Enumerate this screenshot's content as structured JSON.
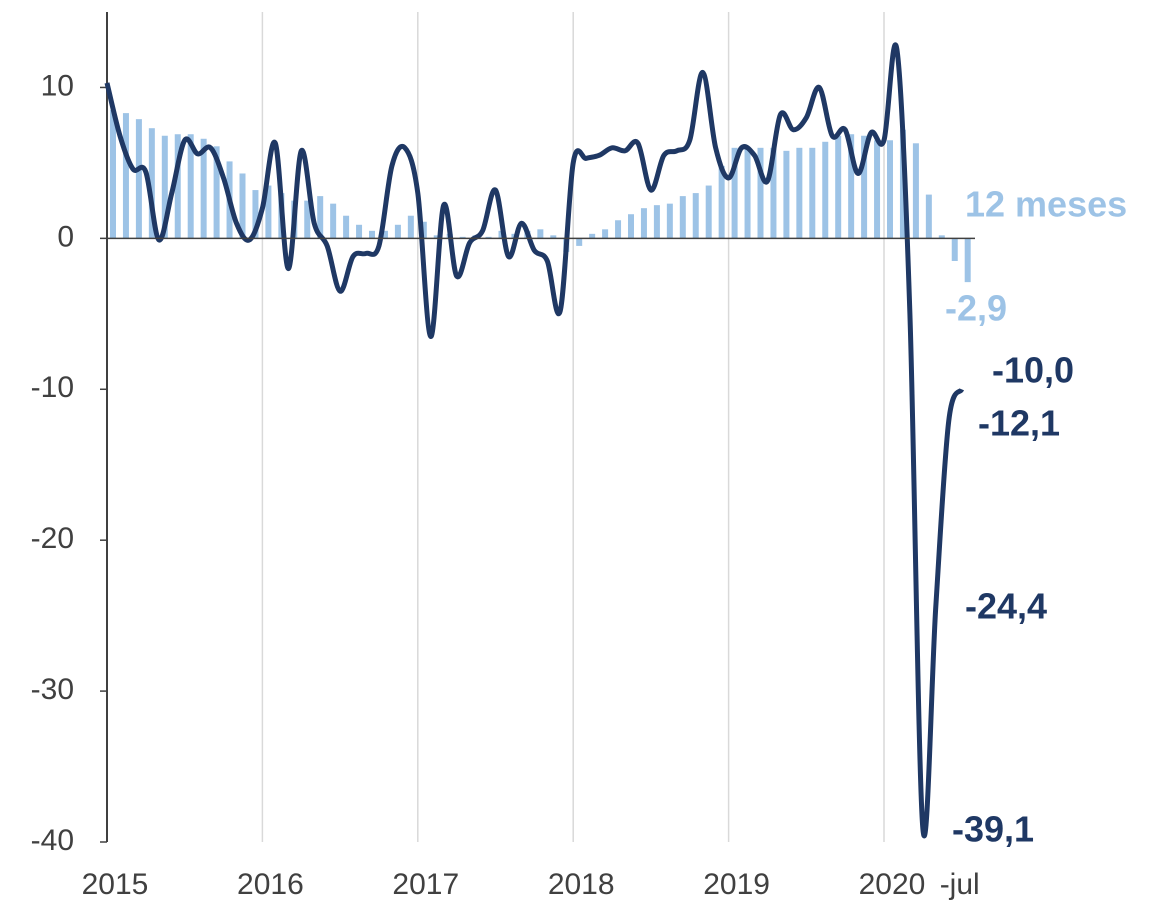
{
  "chart_data": {
    "type": "bar-line",
    "categories": [
      "2015",
      null,
      null,
      null,
      null,
      null,
      null,
      null,
      null,
      null,
      null,
      null,
      "2016",
      null,
      null,
      null,
      null,
      null,
      null,
      null,
      null,
      null,
      null,
      null,
      "2017",
      null,
      null,
      null,
      null,
      null,
      null,
      null,
      null,
      null,
      null,
      null,
      "2018",
      null,
      null,
      null,
      null,
      null,
      null,
      null,
      null,
      null,
      null,
      null,
      "2019",
      null,
      null,
      null,
      null,
      null,
      null,
      null,
      null,
      null,
      null,
      null,
      "2020",
      null,
      null,
      null,
      null,
      null,
      "-jul"
    ],
    "series": [
      {
        "name": "12 meses",
        "type": "bar",
        "color": "#9dc3e6",
        "values": [
          8.5,
          8.3,
          7.9,
          7.3,
          6.8,
          6.9,
          6.9,
          6.6,
          6.1,
          5.1,
          4.3,
          3.2,
          3.5,
          3.0,
          2.5,
          2.5,
          2.8,
          2.3,
          1.5,
          0.9,
          0.5,
          0.5,
          0.9,
          1.5,
          1.1,
          0.2,
          0.3,
          0.1,
          0.2,
          0.1,
          0.5,
          0.3,
          0.5,
          0.6,
          0.2,
          -0.9,
          -0.5,
          0.3,
          0.6,
          1.2,
          1.6,
          2.0,
          2.2,
          2.3,
          2.8,
          3.0,
          3.5,
          4.8,
          6.0,
          5.9,
          6.0,
          6.0,
          5.8,
          6.0,
          6.0,
          6.4,
          6.8,
          6.9,
          6.8,
          6.5,
          6.5,
          7.2,
          6.3,
          2.9,
          0.2,
          -1.5,
          -2.9
        ],
        "value_labels": [
          null,
          null,
          null,
          null,
          null,
          null,
          null,
          null,
          null,
          null,
          null,
          null,
          null,
          null,
          null,
          null,
          null,
          null,
          null,
          null,
          null,
          null,
          null,
          null,
          null,
          null,
          null,
          null,
          null,
          null,
          null,
          null,
          null,
          null,
          null,
          null,
          null,
          null,
          null,
          null,
          null,
          null,
          null,
          null,
          null,
          null,
          null,
          null,
          null,
          null,
          null,
          null,
          null,
          null,
          null,
          null,
          null,
          null,
          null,
          null,
          null,
          null,
          null,
          null,
          null,
          null,
          "-2,9"
        ]
      },
      {
        "type": "line",
        "color": "#1f3864",
        "values": [
          10.3,
          6.8,
          4.6,
          4.4,
          -0.1,
          3.0,
          6.5,
          5.6,
          6.0,
          4.0,
          1.0,
          -0.1,
          2.0,
          6.3,
          -2.0,
          5.8,
          1.0,
          -0.5,
          -3.5,
          -1.2,
          -1.0,
          -0.5,
          4.8,
          6.0,
          3.0,
          -6.5,
          2.2,
          -2.5,
          -0.3,
          0.5,
          3.2,
          -1.2,
          1.0,
          -0.8,
          -1.5,
          -4.8,
          5.0,
          5.3,
          5.5,
          6.0,
          5.8,
          6.3,
          3.2,
          5.5,
          5.8,
          6.5,
          11.0,
          6.0,
          4.0,
          6.0,
          5.5,
          3.8,
          8.2,
          7.2,
          8.0,
          10.0,
          6.8,
          7.2,
          4.3,
          7.0,
          6.5,
          12.5,
          -5.0,
          -39.1,
          -24.4,
          -12.1,
          -10.0
        ],
        "value_labels": [
          null,
          null,
          null,
          null,
          null,
          null,
          null,
          null,
          null,
          null,
          null,
          null,
          null,
          null,
          null,
          null,
          null,
          null,
          null,
          null,
          null,
          null,
          null,
          null,
          null,
          null,
          null,
          null,
          null,
          null,
          null,
          null,
          null,
          null,
          null,
          null,
          null,
          null,
          null,
          null,
          null,
          null,
          null,
          null,
          null,
          null,
          null,
          null,
          null,
          null,
          null,
          null,
          null,
          null,
          null,
          null,
          null,
          null,
          null,
          null,
          null,
          null,
          null,
          "-39,1",
          "-24,4",
          "-12,1",
          "-10,0"
        ]
      }
    ],
    "ylim": [
      -40,
      15
    ],
    "yticks": [
      -40,
      -30,
      -20,
      -10,
      0,
      10
    ],
    "grid": "x"
  }
}
